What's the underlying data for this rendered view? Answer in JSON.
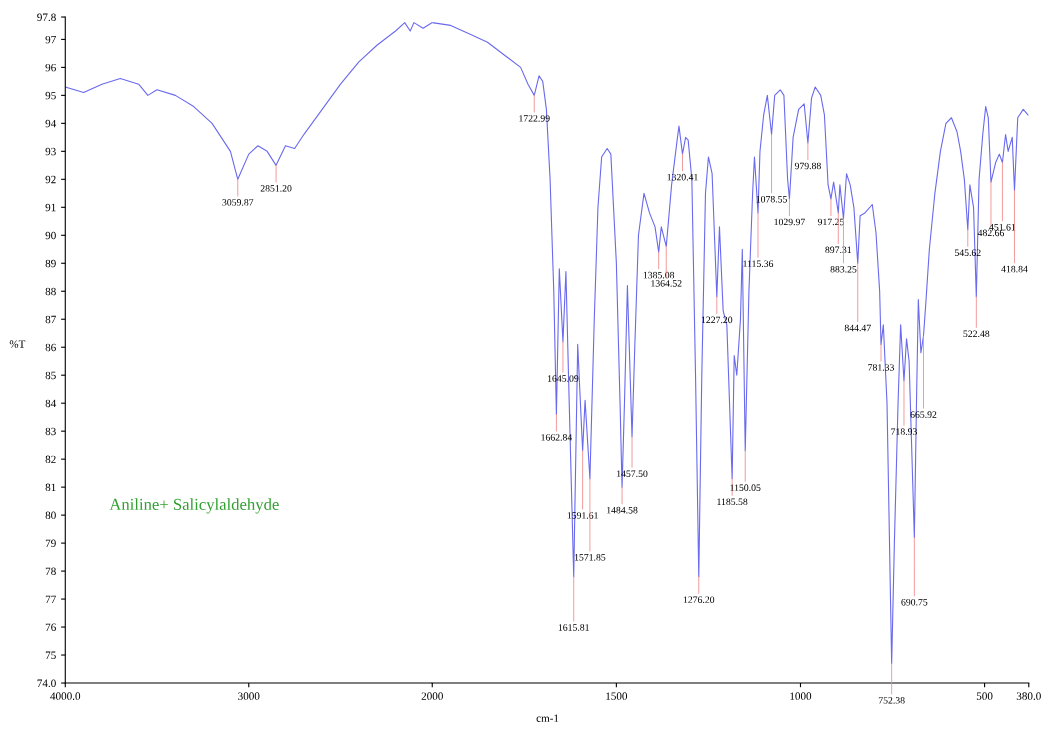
{
  "chart_data": [
    {
      "type": "line",
      "ylabel": "%T",
      "xlim": [
        4000,
        2000
      ],
      "ylim": [
        74,
        97.8
      ],
      "xticks": [
        {
          "value": 4000,
          "label": "4000.0"
        },
        3000
      ],
      "yticks": [
        {
          "value": 74,
          "label": "74.0"
        },
        75,
        76,
        77,
        78,
        79,
        80,
        81,
        82,
        83,
        84,
        85,
        86,
        87,
        88,
        89,
        90,
        91,
        92,
        93,
        94,
        95,
        96,
        97,
        {
          "value": 97.8,
          "label": "97.8"
        }
      ],
      "grid": false,
      "legend": false,
      "marker": "none",
      "line_style": "solid",
      "series": [
        {
          "color": "#6a6aee",
          "x": [
            4000,
            3900,
            3800,
            3700,
            3600,
            3550,
            3500,
            3400,
            3300,
            3200,
            3150,
            3100,
            3059.87,
            3000,
            2950,
            2900,
            2851.2,
            2800,
            2750,
            2700,
            2600,
            2500,
            2400,
            2300,
            2200,
            2150,
            2120,
            2100,
            2050,
            2000
          ],
          "values": [
            95.3,
            95.1,
            95.4,
            95.6,
            95.4,
            95.0,
            95.2,
            95.0,
            94.6,
            94.0,
            93.5,
            93.0,
            92.0,
            92.9,
            93.2,
            93.0,
            92.5,
            93.2,
            93.1,
            93.6,
            94.5,
            95.4,
            96.2,
            96.8,
            97.3,
            97.6,
            97.3,
            97.6,
            97.4,
            97.6
          ]
        }
      ],
      "annotations": [
        {
          "text": "3059.87",
          "x": 3059.87,
          "y": 92.0
        },
        {
          "text": "2851.20",
          "x": 2851.2,
          "y": 92.5
        },
        "Aniline+ Salicylaldehyde"
      ]
    },
    {
      "type": "line",
      "xlabel": "cm-1",
      "xlim": [
        2000,
        380
      ],
      "ylim": [
        74,
        97.8
      ],
      "xticks": [
        2000,
        1500,
        1000,
        500,
        {
          "value": 380,
          "label": "380.0"
        }
      ],
      "tick_labels": "x",
      "grid": false,
      "legend": false,
      "marker": "none",
      "line_style": "solid",
      "series": [
        {
          "color": "#6a6aee",
          "x": [
            2000,
            1950,
            1900,
            1850,
            1800,
            1760,
            1740,
            1722.99,
            1710,
            1700,
            1690,
            1680,
            1670,
            1662.84,
            1655,
            1645.09,
            1637,
            1630,
            1615.81,
            1605,
            1591.61,
            1585,
            1571.85,
            1560,
            1550,
            1540,
            1525,
            1515,
            1500,
            1490,
            1484.58,
            1478,
            1470,
            1457.5,
            1450,
            1440,
            1425,
            1410,
            1395,
            1385.08,
            1378,
            1364.52,
            1350,
            1335,
            1330,
            1320.41,
            1312,
            1305,
            1295,
            1285,
            1276.2,
            1268,
            1258,
            1250,
            1240,
            1227.2,
            1220,
            1210,
            1200,
            1185.58,
            1180,
            1173,
            1163,
            1158,
            1150.05,
            1140,
            1130,
            1125,
            1115.36,
            1110,
            1100,
            1090,
            1078.55,
            1070,
            1055,
            1045,
            1035,
            1029.97,
            1020,
            1005,
            990,
            979.88,
            970,
            960,
            945,
            935,
            925,
            917.25,
            910,
            897.31,
            893,
            883.25,
            875,
            865,
            855,
            844.47,
            838,
            825,
            805,
            795,
            785,
            781.33,
            775,
            765,
            752.38,
            745,
            735,
            728,
            718.93,
            712,
            705,
            690.75,
            685,
            680,
            673,
            665.92,
            660,
            650,
            635,
            620,
            605,
            590,
            575,
            565,
            555,
            545.62,
            540,
            530,
            522.48,
            515,
            505,
            497,
            490,
            482.66,
            470,
            460,
            451.61,
            443,
            436,
            425,
            418.84,
            410,
            395,
            382
          ],
          "values": [
            97.6,
            97.5,
            97.2,
            96.9,
            96.4,
            96.0,
            95.4,
            95.0,
            95.7,
            95.5,
            94.5,
            92.0,
            88.0,
            83.6,
            88.8,
            86.2,
            88.7,
            85.0,
            77.8,
            86.1,
            82.3,
            84.1,
            81.3,
            87.0,
            91.0,
            92.8,
            93.1,
            92.9,
            89.0,
            84.0,
            81.0,
            84.0,
            88.2,
            82.8,
            86.0,
            90.0,
            91.5,
            90.8,
            90.3,
            89.4,
            90.3,
            89.6,
            91.8,
            93.4,
            93.9,
            92.9,
            93.5,
            93.4,
            92.0,
            85.0,
            77.8,
            85.0,
            91.5,
            92.8,
            92.2,
            87.8,
            90.3,
            87.3,
            86.8,
            81.3,
            85.7,
            85.0,
            87.0,
            89.5,
            82.3,
            88.0,
            91.5,
            92.8,
            90.8,
            93.0,
            94.3,
            95.0,
            93.6,
            95.0,
            95.2,
            95.0,
            92.0,
            91.3,
            93.5,
            94.5,
            94.7,
            93.3,
            94.9,
            95.3,
            95.0,
            94.3,
            91.8,
            91.3,
            91.9,
            90.8,
            91.8,
            90.6,
            92.2,
            91.8,
            91.0,
            89.0,
            90.7,
            90.8,
            91.1,
            90.1,
            88.0,
            86.1,
            86.8,
            84.0,
            74.7,
            79.0,
            84.0,
            86.8,
            84.8,
            86.3,
            85.5,
            79.2,
            84.0,
            87.7,
            85.8,
            86.4,
            87.5,
            89.5,
            91.5,
            93.0,
            94.0,
            94.2,
            93.7,
            93.0,
            92.0,
            90.2,
            91.8,
            91.0,
            87.8,
            92.0,
            93.6,
            94.6,
            94.2,
            91.9,
            92.6,
            92.9,
            92.6,
            93.6,
            93.0,
            93.5,
            91.6,
            94.2,
            94.5,
            94.3
          ]
        }
      ],
      "annotations": [
        {
          "text": "1722.99",
          "x": 1722.99,
          "y": 95.0
        },
        {
          "text": "1662.84",
          "x": 1662.84,
          "y": 83.6
        },
        {
          "text": "1645.09",
          "x": 1645.09,
          "y": 86.2
        },
        {
          "text": "1615.81",
          "x": 1615.81,
          "y": 77.8
        },
        {
          "text": "1591.61",
          "x": 1591.61,
          "y": 82.3
        },
        {
          "text": "1571.85",
          "x": 1571.85,
          "y": 81.3
        },
        {
          "text": "1484.58",
          "x": 1484.58,
          "y": 81.0
        },
        {
          "text": "1457.50",
          "x": 1457.5,
          "y": 82.8
        },
        {
          "text": "1385.08",
          "x": 1385.08,
          "y": 89.4
        },
        {
          "text": "1364.52",
          "x": 1364.52,
          "y": 89.6
        },
        {
          "text": "1320.41",
          "x": 1320.41,
          "y": 92.9
        },
        {
          "text": "1276.20",
          "x": 1276.2,
          "y": 77.8
        },
        {
          "text": "1227.20",
          "x": 1227.2,
          "y": 87.8
        },
        {
          "text": "1185.58",
          "x": 1185.58,
          "y": 81.3
        },
        {
          "text": "1150.05",
          "x": 1150.05,
          "y": 82.3
        },
        {
          "text": "1115.36",
          "x": 1115.36,
          "y": 90.8
        },
        {
          "text": "1078.55",
          "x": 1078.55,
          "y": 93.6
        },
        {
          "text": "1029.97",
          "x": 1029.97,
          "y": 91.3
        },
        {
          "text": "979.88",
          "x": 979.88,
          "y": 93.3
        },
        {
          "text": "917.25",
          "x": 917.25,
          "y": 91.3
        },
        {
          "text": "897.31",
          "x": 897.31,
          "y": 90.8
        },
        {
          "text": "883.25",
          "x": 883.25,
          "y": 90.6
        },
        {
          "text": "844.47",
          "x": 844.47,
          "y": 89.0
        },
        {
          "text": "781.33",
          "x": 781.33,
          "y": 86.1
        },
        {
          "text": "752.38",
          "x": 752.38,
          "y": 74.7
        },
        {
          "text": "718.93",
          "x": 718.93,
          "y": 84.8
        },
        {
          "text": "690.75",
          "x": 690.75,
          "y": 79.2
        },
        {
          "text": "665.92",
          "x": 665.92,
          "y": 86.4
        },
        {
          "text": "545.62",
          "x": 545.62,
          "y": 90.2
        },
        {
          "text": "522.48",
          "x": 522.48,
          "y": 87.8
        },
        {
          "text": "482.66",
          "x": 482.66,
          "y": 91.9
        },
        {
          "text": "451.61",
          "x": 451.61,
          "y": 92.6
        },
        {
          "text": "418.84",
          "x": 418.84,
          "y": 91.6
        }
      ]
    }
  ]
}
